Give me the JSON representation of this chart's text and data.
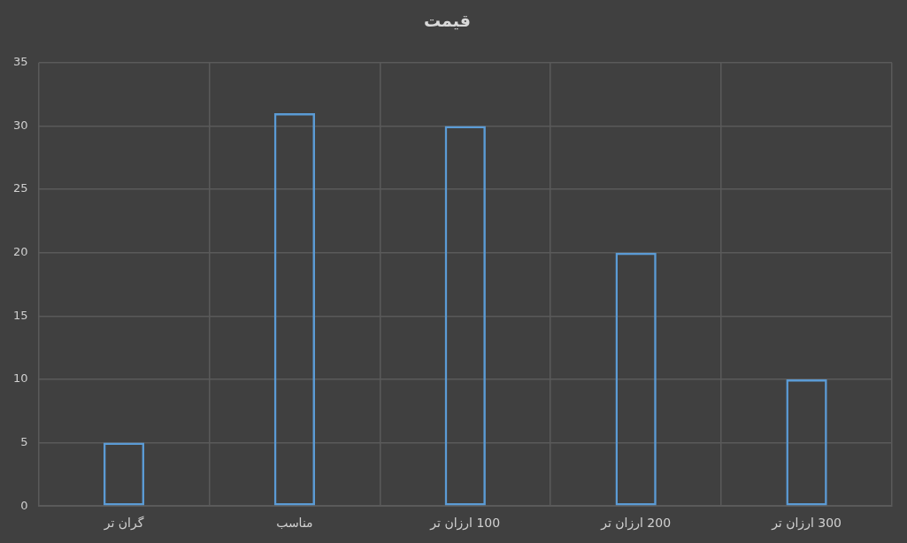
{
  "chart_data": {
    "type": "bar",
    "title": "قیمت",
    "categories": [
      "گران تر",
      "مناسب",
      "100 ارزان تر",
      "200 ارزان تر",
      "300 ارزان تر"
    ],
    "values": [
      5,
      31,
      30,
      20,
      10
    ],
    "color": "#5b9bd5",
    "ylim": [
      0,
      35
    ],
    "yticks": [
      0,
      5,
      10,
      15,
      20,
      25,
      30,
      35
    ],
    "grid": true
  }
}
